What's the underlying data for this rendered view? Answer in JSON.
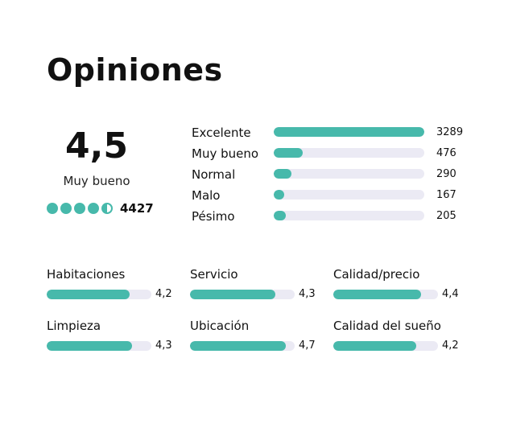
{
  "header": {
    "title": "Opiniones"
  },
  "summary": {
    "score": "4,5",
    "score_label": "Muy bueno",
    "bubble_rating": 4.5,
    "review_count": "4427"
  },
  "distribution": [
    {
      "label": "Excelente",
      "count": "3289",
      "fraction": 1.0
    },
    {
      "label": "Muy bueno",
      "count": "476",
      "fraction": 0.19
    },
    {
      "label": "Normal",
      "count": "290",
      "fraction": 0.12
    },
    {
      "label": "Malo",
      "count": "167",
      "fraction": 0.07
    },
    {
      "label": "Pésimo",
      "count": "205",
      "fraction": 0.08
    }
  ],
  "categories": [
    {
      "label": "Habitaciones",
      "value": "4,2",
      "score": 4.2
    },
    {
      "label": "Servicio",
      "value": "4,3",
      "score": 4.3
    },
    {
      "label": "Calidad/precio",
      "value": "4,4",
      "score": 4.4
    },
    {
      "label": "Limpieza",
      "value": "4,3",
      "score": 4.3
    },
    {
      "label": "Ubicación",
      "value": "4,7",
      "score": 4.7
    },
    {
      "label": "Calidad del sueño",
      "value": "4,2",
      "score": 4.2
    }
  ],
  "colors": {
    "accent": "#47b9ab",
    "track": "#ebeaf4"
  }
}
